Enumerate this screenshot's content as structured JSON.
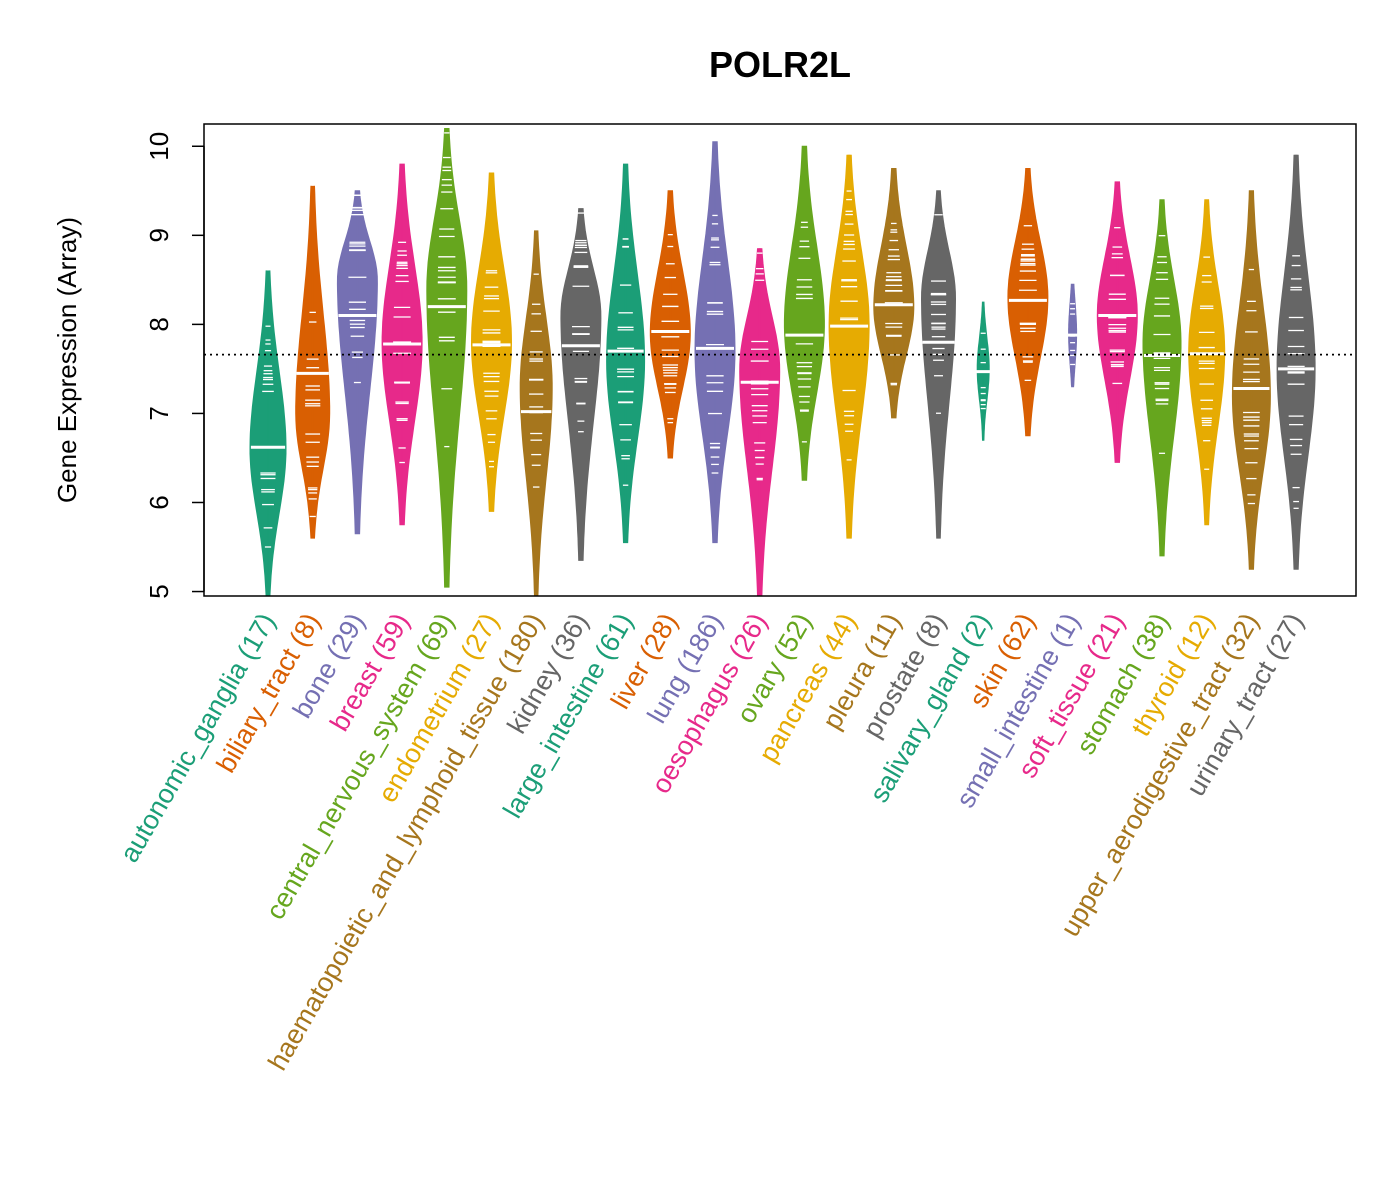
{
  "chart_data": {
    "type": "violin",
    "title": "POLR2L",
    "xlabel": "",
    "ylabel": "Gene Expression (Array)",
    "ylim": [
      4.95,
      10.25
    ],
    "yticks": [
      "5",
      "6",
      "7",
      "8",
      "9",
      "10"
    ],
    "reference_line": 7.66,
    "categories": [
      {
        "name": "autonomic_ganglia",
        "n": "(17)",
        "color": "#1B9E77",
        "min": 4.95,
        "max": 8.6,
        "median": 6.62,
        "mode": 6.6,
        "width": 0.9
      },
      {
        "name": "biliary_tract",
        "n": "(8)",
        "color": "#D95F02",
        "min": 5.6,
        "max": 9.55,
        "median": 7.45,
        "mode": 7.0,
        "width": 0.85
      },
      {
        "name": "bone",
        "n": "(29)",
        "color": "#7570B3",
        "min": 5.65,
        "max": 9.5,
        "median": 8.1,
        "mode": 8.5,
        "width": 1.0
      },
      {
        "name": "breast",
        "n": "(59)",
        "color": "#E7298A",
        "min": 5.75,
        "max": 9.8,
        "median": 7.78,
        "mode": 7.8,
        "width": 1.0
      },
      {
        "name": "central_nervous_system",
        "n": "(69)",
        "color": "#66A61E",
        "min": 5.05,
        "max": 10.2,
        "median": 8.2,
        "mode": 8.4,
        "width": 1.0
      },
      {
        "name": "endometrium",
        "n": "(27)",
        "color": "#E6AB02",
        "min": 5.9,
        "max": 9.7,
        "median": 7.77,
        "mode": 7.8,
        "width": 1.0
      },
      {
        "name": "haematopoietic_and_lymphoid_tissue",
        "n": "(180)",
        "color": "#A6761D",
        "min": 4.95,
        "max": 9.05,
        "median": 7.02,
        "mode": 7.3,
        "width": 0.8
      },
      {
        "name": "kidney",
        "n": "(36)",
        "color": "#666666",
        "min": 5.35,
        "max": 9.3,
        "median": 7.76,
        "mode": 8.1,
        "width": 1.0
      },
      {
        "name": "large_intestine",
        "n": "(61)",
        "color": "#1B9E77",
        "min": 5.55,
        "max": 9.8,
        "median": 7.7,
        "mode": 7.6,
        "width": 0.95
      },
      {
        "name": "liver",
        "n": "(28)",
        "color": "#D95F02",
        "min": 6.5,
        "max": 9.5,
        "median": 7.92,
        "mode": 7.9,
        "width": 1.0
      },
      {
        "name": "lung",
        "n": "(186)",
        "color": "#7570B3",
        "min": 5.55,
        "max": 10.05,
        "median": 7.73,
        "mode": 7.7,
        "width": 1.0
      },
      {
        "name": "oesophagus",
        "n": "(26)",
        "color": "#E7298A",
        "min": 4.95,
        "max": 8.85,
        "median": 7.35,
        "mode": 7.5,
        "width": 1.0
      },
      {
        "name": "ovary",
        "n": "(52)",
        "color": "#66A61E",
        "min": 6.25,
        "max": 10.0,
        "median": 7.88,
        "mode": 8.0,
        "width": 1.0
      },
      {
        "name": "pancreas",
        "n": "(44)",
        "color": "#E6AB02",
        "min": 5.6,
        "max": 9.9,
        "median": 7.98,
        "mode": 8.0,
        "width": 1.0
      },
      {
        "name": "pleura",
        "n": "(11)",
        "color": "#A6761D",
        "min": 6.95,
        "max": 9.75,
        "median": 8.22,
        "mode": 8.2,
        "width": 1.0
      },
      {
        "name": "prostate",
        "n": "(8)",
        "color": "#666666",
        "min": 5.6,
        "max": 9.5,
        "median": 7.8,
        "mode": 8.3,
        "width": 0.85
      },
      {
        "name": "salivary_gland",
        "n": "(2)",
        "color": "#1B9E77",
        "min": 6.7,
        "max": 8.25,
        "median": 7.47,
        "mode": 7.5,
        "width": 0.3
      },
      {
        "name": "skin",
        "n": "(62)",
        "color": "#D95F02",
        "min": 6.75,
        "max": 9.75,
        "median": 8.27,
        "mode": 8.3,
        "width": 1.0
      },
      {
        "name": "small_intestine",
        "n": "(1)",
        "color": "#7570B3",
        "min": 7.3,
        "max": 8.45,
        "median": 7.88,
        "mode": 7.9,
        "width": 0.2
      },
      {
        "name": "soft_tissue",
        "n": "(21)",
        "color": "#E7298A",
        "min": 6.45,
        "max": 9.6,
        "median": 8.1,
        "mode": 8.1,
        "width": 1.0
      },
      {
        "name": "stomach",
        "n": "(38)",
        "color": "#66A61E",
        "min": 5.4,
        "max": 9.4,
        "median": 7.65,
        "mode": 7.8,
        "width": 0.95
      },
      {
        "name": "thyroid",
        "n": "(12)",
        "color": "#E6AB02",
        "min": 5.75,
        "max": 9.4,
        "median": 7.67,
        "mode": 7.7,
        "width": 0.9
      },
      {
        "name": "upper_aerodigestive_tract",
        "n": "(32)",
        "color": "#A6761D",
        "min": 5.25,
        "max": 9.5,
        "median": 7.28,
        "mode": 7.2,
        "width": 0.95
      },
      {
        "name": "urinary_tract",
        "n": "(27)",
        "color": "#666666",
        "min": 5.25,
        "max": 9.9,
        "median": 7.5,
        "mode": 7.5,
        "width": 0.95
      }
    ]
  }
}
